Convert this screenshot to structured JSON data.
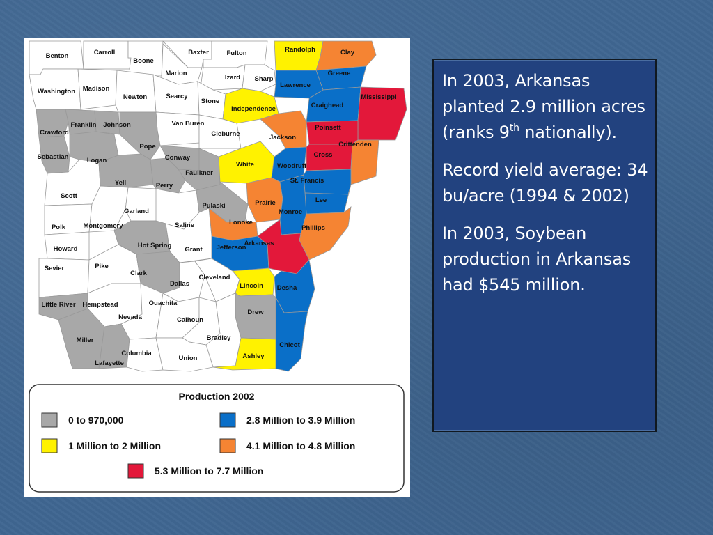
{
  "colors": {
    "gray": "#a8a8a8",
    "yellow": "#fff200",
    "blue": "#0a6fc8",
    "orange": "#f58433",
    "red": "#e3183a",
    "white": "#ffffff",
    "slide_bg": "#3f6691",
    "panel_bg": "#22427f"
  },
  "map": {
    "counties": [
      {
        "name": "Benton",
        "cls": "white"
      },
      {
        "name": "Carroll",
        "cls": "white"
      },
      {
        "name": "Boone",
        "cls": "white"
      },
      {
        "name": "Baxter",
        "cls": "white"
      },
      {
        "name": "Fulton",
        "cls": "white"
      },
      {
        "name": "Randolph",
        "cls": "yellow"
      },
      {
        "name": "Clay",
        "cls": "orange"
      },
      {
        "name": "Marion",
        "cls": "white"
      },
      {
        "name": "Izard",
        "cls": "white"
      },
      {
        "name": "Sharp",
        "cls": "white"
      },
      {
        "name": "Greene",
        "cls": "blue"
      },
      {
        "name": "Lawrence",
        "cls": "blue"
      },
      {
        "name": "Washington",
        "cls": "white"
      },
      {
        "name": "Madison",
        "cls": "white"
      },
      {
        "name": "Newton",
        "cls": "white"
      },
      {
        "name": "Searcy",
        "cls": "white"
      },
      {
        "name": "Stone",
        "cls": "white"
      },
      {
        "name": "Independence",
        "cls": "yellow"
      },
      {
        "name": "Craighead",
        "cls": "blue"
      },
      {
        "name": "Mississippi",
        "cls": "red"
      },
      {
        "name": "Crawford",
        "cls": "gray"
      },
      {
        "name": "Franklin",
        "cls": "gray"
      },
      {
        "name": "Johnson",
        "cls": "gray"
      },
      {
        "name": "Van Buren",
        "cls": "white"
      },
      {
        "name": "Cleburne",
        "cls": "white"
      },
      {
        "name": "Jackson",
        "cls": "orange"
      },
      {
        "name": "Poinsett",
        "cls": "red"
      },
      {
        "name": "Sebastian",
        "cls": "gray"
      },
      {
        "name": "Logan",
        "cls": "gray"
      },
      {
        "name": "Pope",
        "cls": "gray"
      },
      {
        "name": "Conway",
        "cls": "gray"
      },
      {
        "name": "Faulkner",
        "cls": "gray"
      },
      {
        "name": "White",
        "cls": "yellow"
      },
      {
        "name": "Woodruff",
        "cls": "blue"
      },
      {
        "name": "Cross",
        "cls": "red"
      },
      {
        "name": "Crittenden",
        "cls": "orange"
      },
      {
        "name": "Scott",
        "cls": "white"
      },
      {
        "name": "Yell",
        "cls": "gray"
      },
      {
        "name": "Perry",
        "cls": "gray"
      },
      {
        "name": "St. Francis",
        "cls": "blue"
      },
      {
        "name": "Prairie",
        "cls": "orange"
      },
      {
        "name": "Lee",
        "cls": "blue"
      },
      {
        "name": "Polk",
        "cls": "white"
      },
      {
        "name": "Montgomery",
        "cls": "white"
      },
      {
        "name": "Garland",
        "cls": "white"
      },
      {
        "name": "Saline",
        "cls": "white"
      },
      {
        "name": "Pulaski",
        "cls": "gray"
      },
      {
        "name": "Lonoke",
        "cls": "orange"
      },
      {
        "name": "Monroe",
        "cls": "blue"
      },
      {
        "name": "Phillips",
        "cls": "orange"
      },
      {
        "name": "Howard",
        "cls": "white"
      },
      {
        "name": "Hot Spring",
        "cls": "gray"
      },
      {
        "name": "Grant",
        "cls": "white"
      },
      {
        "name": "Jefferson",
        "cls": "blue"
      },
      {
        "name": "Arkansas",
        "cls": "red"
      },
      {
        "name": "Sevier",
        "cls": "white"
      },
      {
        "name": "Pike",
        "cls": "white"
      },
      {
        "name": "Clark",
        "cls": "gray"
      },
      {
        "name": "Dallas",
        "cls": "white"
      },
      {
        "name": "Cleveland",
        "cls": "white"
      },
      {
        "name": "Lincoln",
        "cls": "yellow"
      },
      {
        "name": "Desha",
        "cls": "blue"
      },
      {
        "name": "Little River",
        "cls": "gray"
      },
      {
        "name": "Hempstead",
        "cls": "white"
      },
      {
        "name": "Nevada",
        "cls": "white"
      },
      {
        "name": "Ouachita",
        "cls": "white"
      },
      {
        "name": "Calhoun",
        "cls": "white"
      },
      {
        "name": "Drew",
        "cls": "gray"
      },
      {
        "name": "Bradley",
        "cls": "white"
      },
      {
        "name": "Chicot",
        "cls": "blue"
      },
      {
        "name": "Miller",
        "cls": "gray"
      },
      {
        "name": "Lafayette",
        "cls": "gray"
      },
      {
        "name": "Columbia",
        "cls": "white"
      },
      {
        "name": "Union",
        "cls": "white"
      },
      {
        "name": "Ashley",
        "cls": "yellow"
      }
    ]
  },
  "legend": {
    "title": "Production 2002",
    "items": [
      {
        "label": "0 to 970,000",
        "cls": "gray"
      },
      {
        "label": "2.8 Million to 3.9 Million",
        "cls": "blue"
      },
      {
        "label": "1 Million to 2 Million",
        "cls": "yellow"
      },
      {
        "label": "4.1 Million to 4.8 Million",
        "cls": "orange"
      },
      {
        "label": "5.3 Million to 7.7 Million",
        "cls": "red"
      }
    ]
  },
  "text_panel": {
    "p1_a": "In 2003, Arkansas planted 2.9 million acres (ranks 9",
    "p1_sup": "th",
    "p1_b": " nationally).",
    "p2": "Record yield average: 34 bu/acre (1994 & 2002)",
    "p3": "In 2003, Soybean production in Arkansas had $545 million."
  }
}
